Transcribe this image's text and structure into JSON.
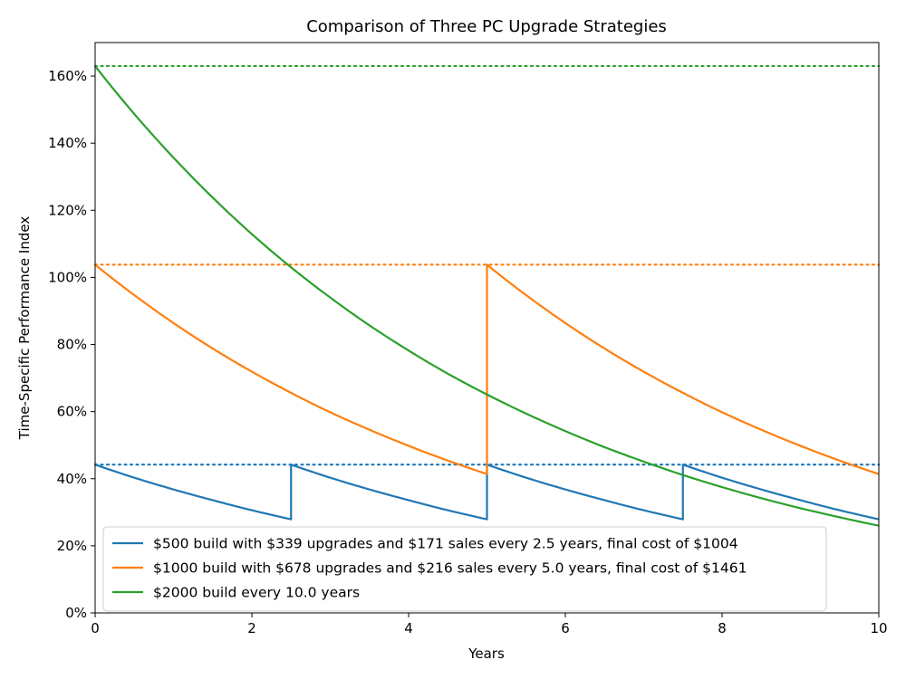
{
  "chart_data": {
    "type": "line",
    "title": "Comparison of Three PC Upgrade Strategies",
    "xlabel": "Years",
    "ylabel": "Time-Specific Performance Index",
    "xlim": [
      0,
      10
    ],
    "ylim": [
      0,
      170
    ],
    "xticks": [
      0,
      2,
      4,
      6,
      8,
      10
    ],
    "xtick_labels": [
      "0",
      "2",
      "4",
      "6",
      "8",
      "10"
    ],
    "yticks": [
      0,
      20,
      40,
      60,
      80,
      100,
      120,
      140,
      160
    ],
    "ytick_labels": [
      "0%",
      "20%",
      "40%",
      "60%",
      "80%",
      "100%",
      "120%",
      "140%",
      "160%"
    ],
    "grid": false,
    "legend_position": "lower-left",
    "series": [
      {
        "name": "$500 build with $339 upgrades and $171 sales every 2.5 years, final cost of $1004",
        "color": "#1f77b4",
        "x": [
          0,
          0.5,
          1,
          1.5,
          2,
          2.5,
          2.5,
          3,
          3.5,
          4,
          4.5,
          5,
          5,
          5.5,
          6,
          6.5,
          7,
          7.5,
          7.5,
          8,
          8.5,
          9,
          9.5,
          10
        ],
        "y": [
          44.2,
          40.3,
          36.8,
          33.6,
          30.6,
          27.9,
          44.2,
          40.3,
          36.8,
          33.6,
          30.6,
          27.9,
          44.2,
          40.3,
          36.8,
          33.6,
          30.6,
          27.9,
          44.2,
          40.3,
          36.8,
          33.6,
          30.6,
          27.9
        ],
        "reference_level": 44.2
      },
      {
        "name": "$1000 build with $678 upgrades and $216 sales every 5.0 years, final cost of $1461",
        "color": "#ff7f0e",
        "x": [
          0,
          0.5,
          1,
          1.5,
          2,
          2.5,
          3,
          3.5,
          4,
          4.5,
          5,
          5,
          5.5,
          6,
          6.5,
          7,
          7.5,
          8,
          8.5,
          9,
          9.5,
          10
        ],
        "y": [
          103.8,
          94.7,
          86.4,
          78.8,
          71.9,
          65.6,
          59.8,
          54.6,
          49.8,
          45.4,
          41.4,
          103.8,
          94.7,
          86.4,
          78.8,
          71.9,
          65.6,
          59.8,
          54.6,
          49.8,
          45.4,
          41.4
        ],
        "reference_level": 103.8
      },
      {
        "name": "$2000 build every 10.0 years",
        "color": "#2ca02c",
        "x": [
          0,
          0.5,
          1,
          1.5,
          2,
          2.5,
          3,
          3.5,
          4,
          4.5,
          5,
          5.5,
          6,
          6.5,
          7,
          7.5,
          8,
          8.5,
          9,
          9.5,
          10
        ],
        "y": [
          163.0,
          148.7,
          135.7,
          123.8,
          112.9,
          103.0,
          94.0,
          85.7,
          78.2,
          71.3,
          65.1,
          59.4,
          54.2,
          49.4,
          45.1,
          41.1,
          37.5,
          34.2,
          31.2,
          28.5,
          26.0
        ],
        "reference_level": 163.0
      }
    ]
  }
}
